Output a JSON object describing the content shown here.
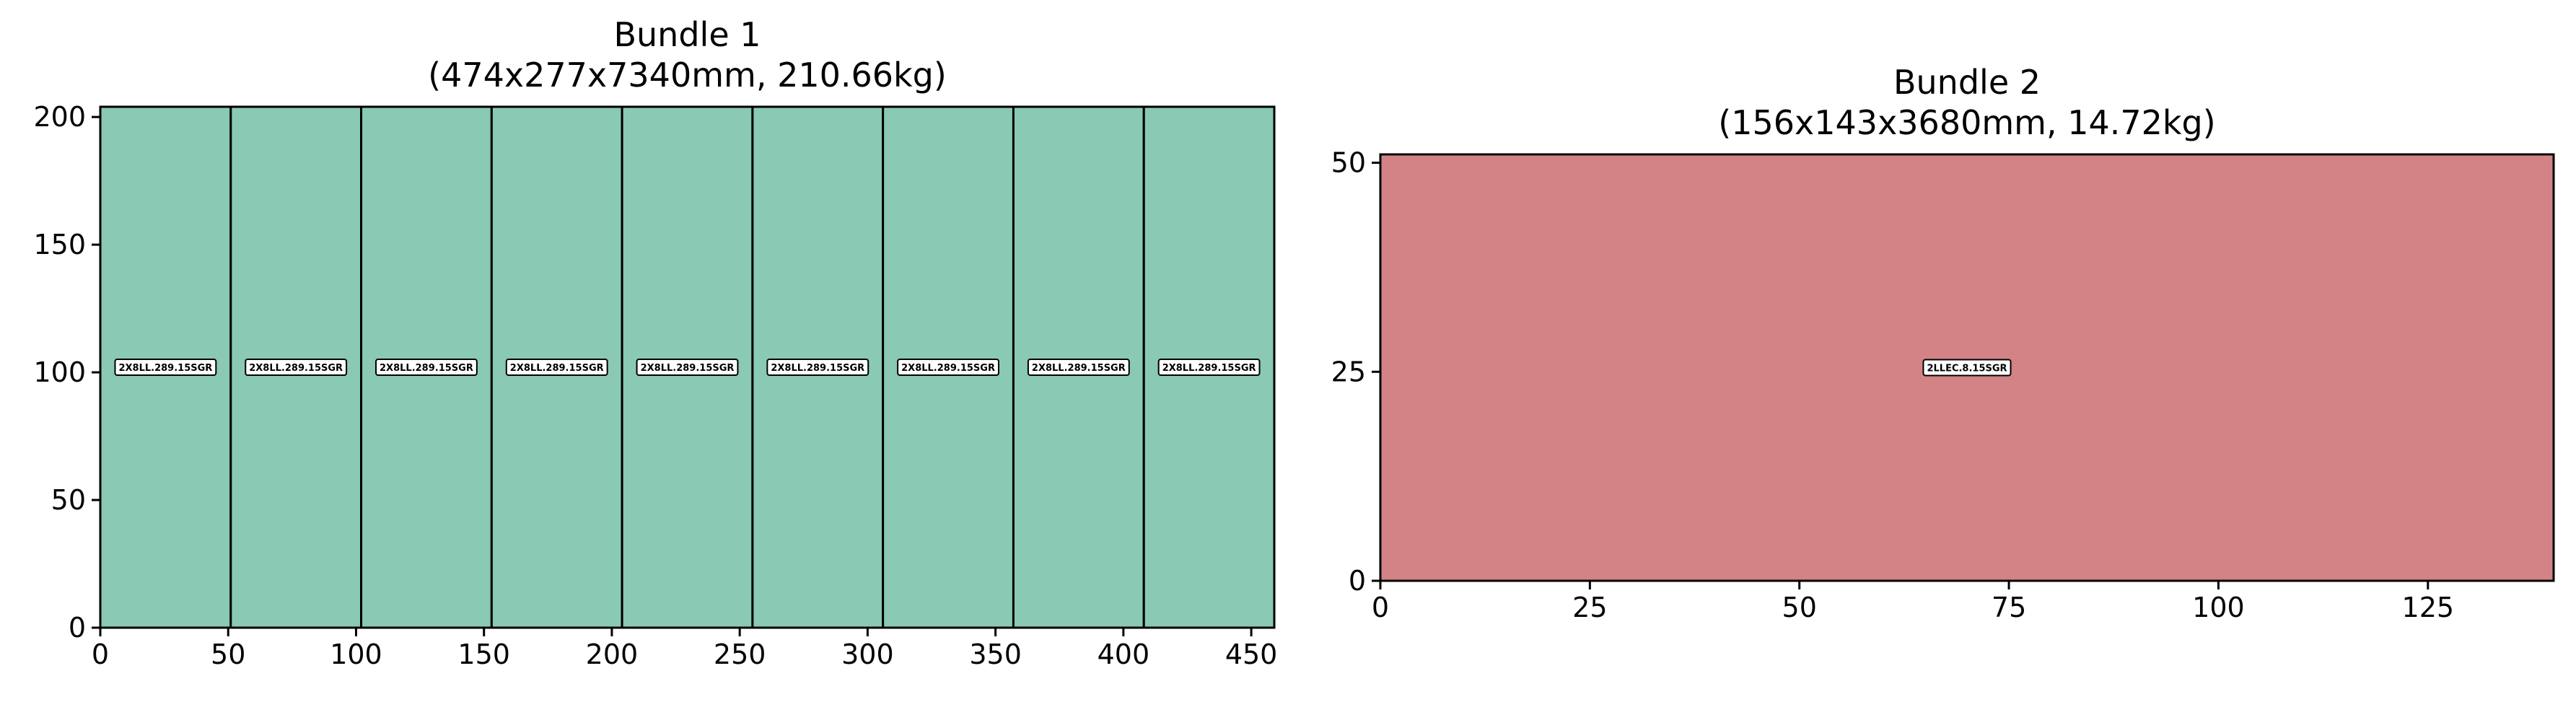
{
  "chart_data": [
    {
      "type": "bar",
      "title_line1": "Bundle 1",
      "title_line2": "(474x277x7340mm, 210.66kg)",
      "xlim": [
        0,
        459
      ],
      "ylim": [
        0,
        204
      ],
      "xticks": [
        0,
        50,
        100,
        150,
        200,
        250,
        300,
        350,
        400,
        450
      ],
      "yticks": [
        0,
        50,
        100,
        150,
        200
      ],
      "fill_color": "#8ac9b3",
      "edge_color": "#000000",
      "rects": [
        {
          "x0": 0,
          "x1": 51,
          "y0": 0,
          "y1": 204,
          "label": "2X8LL.289.15SGR"
        },
        {
          "x0": 51,
          "x1": 102,
          "y0": 0,
          "y1": 204,
          "label": "2X8LL.289.15SGR"
        },
        {
          "x0": 102,
          "x1": 153,
          "y0": 0,
          "y1": 204,
          "label": "2X8LL.289.15SGR"
        },
        {
          "x0": 153,
          "x1": 204,
          "y0": 0,
          "y1": 204,
          "label": "2X8LL.289.15SGR"
        },
        {
          "x0": 204,
          "x1": 255,
          "y0": 0,
          "y1": 204,
          "label": "2X8LL.289.15SGR"
        },
        {
          "x0": 255,
          "x1": 306,
          "y0": 0,
          "y1": 204,
          "label": "2X8LL.289.15SGR"
        },
        {
          "x0": 306,
          "x1": 357,
          "y0": 0,
          "y1": 204,
          "label": "2X8LL.289.15SGR"
        },
        {
          "x0": 357,
          "x1": 408,
          "y0": 0,
          "y1": 204,
          "label": "2X8LL.289.15SGR"
        },
        {
          "x0": 408,
          "x1": 459,
          "y0": 0,
          "y1": 204,
          "label": "2X8LL.289.15SGR"
        }
      ]
    },
    {
      "type": "bar",
      "title_line1": "Bundle 2",
      "title_line2": "(156x143x3680mm, 14.72kg)",
      "xlim": [
        0,
        140
      ],
      "ylim": [
        0,
        51
      ],
      "xticks": [
        0,
        25,
        50,
        75,
        100,
        125
      ],
      "yticks": [
        0,
        25,
        50
      ],
      "fill_color": "#d38385",
      "edge_color": "#000000",
      "rects": [
        {
          "x0": 0,
          "x1": 140,
          "y0": 0,
          "y1": 51,
          "label": "2LLEC.8.15SGR"
        }
      ]
    }
  ]
}
